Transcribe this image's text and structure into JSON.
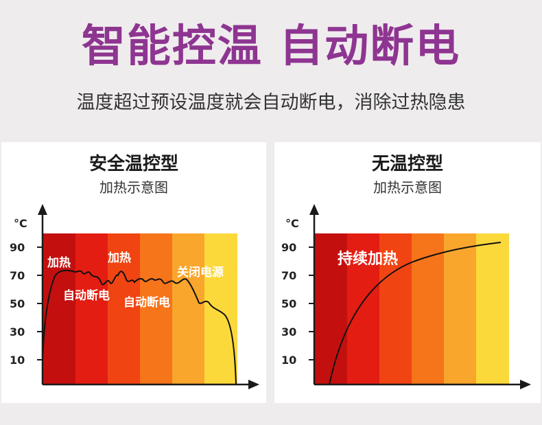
{
  "headline": "智能控温 自动断电",
  "subline": "温度超过预设温度就会自动断电，消除过热隐患",
  "colors": {
    "headline": "#8e3591",
    "bands": [
      "#c3100f",
      "#e31d12",
      "#f14413",
      "#f6741a",
      "#f9a62c",
      "#fcd93b"
    ]
  },
  "cards": [
    {
      "title": "安全温控型",
      "subtitle": "加热示意图",
      "unit": "°C",
      "ticks": [
        "90",
        "70",
        "50",
        "30",
        "10"
      ],
      "annotations": [
        "加热",
        "加热",
        "自动断电",
        "自动断电",
        "关闭电源"
      ]
    },
    {
      "title": "无温控型",
      "subtitle": "加热示意图",
      "unit": "°C",
      "ticks": [
        "90",
        "70",
        "50",
        "30",
        "10"
      ],
      "annotations": [
        "持续加热"
      ]
    }
  ]
}
